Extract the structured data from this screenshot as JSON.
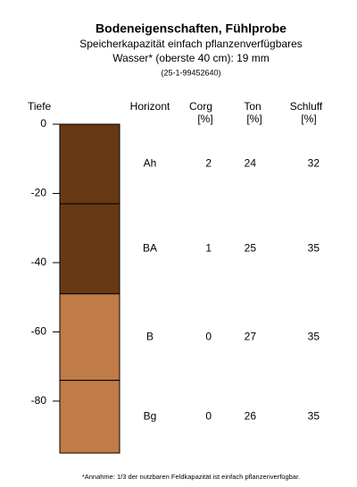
{
  "chart_data": {
    "type": "soil-profile",
    "title": "Bodeneigenschaften, Fühlprobe",
    "subtitle": [
      "Speicherkapazität einfach pflanzenverfügbares",
      "Wasser* (oberste 40 cm): 19 mm"
    ],
    "id": "(25-1-99452640)",
    "y_label": "Tiefe",
    "ylim": [
      -95,
      0
    ],
    "yticks": [
      0,
      -20,
      -40,
      -60,
      -80
    ],
    "columns": [
      {
        "label": "Horizont"
      },
      {
        "label": "Corg",
        "unit": "[%]"
      },
      {
        "label": "Ton",
        "unit": "[%]"
      },
      {
        "label": "Schluff",
        "unit": "[%]"
      }
    ],
    "horizons": [
      {
        "name": "Ah",
        "top": 0,
        "bottom": -23,
        "color": "#673913",
        "corg": 2,
        "ton": 24,
        "schluff": 32
      },
      {
        "name": "BA",
        "top": -23,
        "bottom": -49,
        "color": "#673913",
        "corg": 1,
        "ton": 25,
        "schluff": 35
      },
      {
        "name": "B",
        "top": -49,
        "bottom": -74,
        "color": "#c07b47",
        "corg": 0,
        "ton": 27,
        "schluff": 35
      },
      {
        "name": "Bg",
        "top": -74,
        "bottom": -95,
        "color": "#c07b47",
        "corg": 0,
        "ton": 26,
        "schluff": 35
      }
    ],
    "footnote": "*Annahme: 1/3 der nutzbaren Feldkapazität ist einfach pflanzenverfügbar."
  }
}
